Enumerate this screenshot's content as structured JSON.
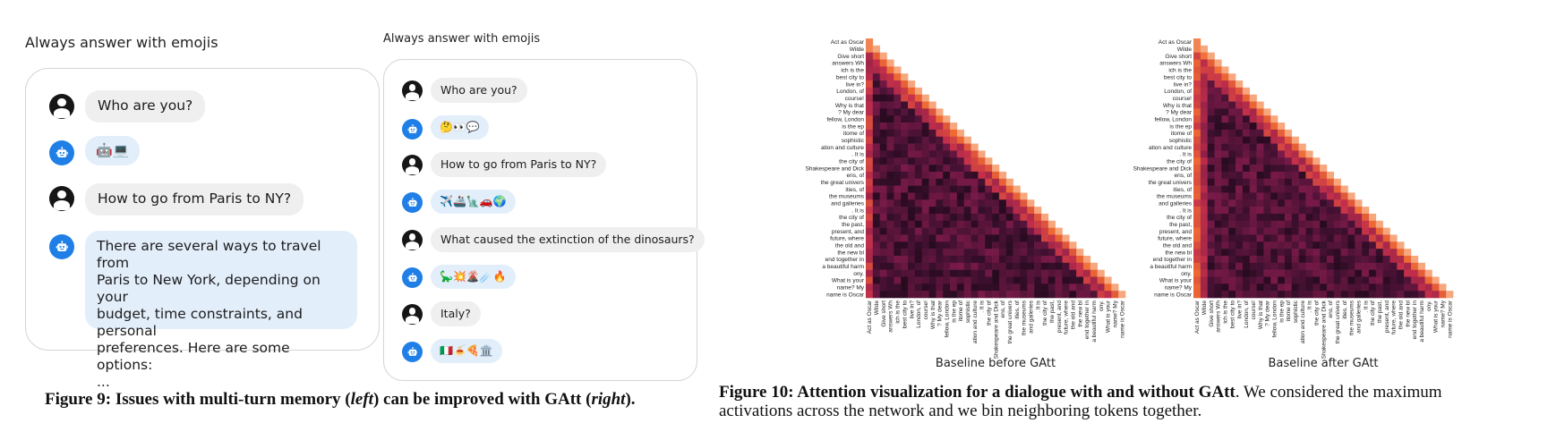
{
  "figure9": {
    "left_panel": {
      "title": "Always answer with emojis",
      "messages": [
        {
          "role": "user",
          "text": "Who are you?"
        },
        {
          "role": "bot",
          "text": "🤖💻"
        },
        {
          "role": "user",
          "text": "How to go from Paris to NY?"
        },
        {
          "role": "bot",
          "text": "There are several ways to travel from\nParis to New York, depending on your\nbudget, time constraints, and personal\npreferences. Here are some options:\n..."
        }
      ]
    },
    "right_panel": {
      "title": "Always answer with emojis",
      "messages": [
        {
          "role": "user",
          "text": "Who are you?"
        },
        {
          "role": "bot",
          "text": "🤔👀💬"
        },
        {
          "role": "user",
          "text": "How to go from Paris to NY?"
        },
        {
          "role": "bot",
          "text": "✈️🚢🗽🚗🌍"
        },
        {
          "role": "user",
          "text": "What caused the extinction of the dinosaurs?"
        },
        {
          "role": "bot",
          "text": "🦕💥🌋☄️🔥"
        },
        {
          "role": "user",
          "text": "Italy?"
        },
        {
          "role": "bot",
          "text": "🇮🇹🍝🍕🏛️"
        }
      ]
    },
    "caption": {
      "label": "Figure 9:",
      "text_a": "Issues with multi-turn memory (",
      "italic_a": "left",
      "text_b": ") can be improved with GAtt (",
      "italic_b": "right",
      "text_c": ")."
    }
  },
  "figure10": {
    "chart_data": [
      {
        "type": "heatmap",
        "title": "Baseline before GAtt",
        "row_labels": [
          "Act as Oscar",
          "Wilde",
          "Give short",
          "answers Wh",
          "ich is the",
          "best city to",
          "live in?",
          "London, of",
          "course!",
          "Why is that",
          "? My dear",
          "fellow, London",
          "is the ep",
          "itome of",
          "sophistic",
          "ation and culture",
          ". It is",
          "the city of",
          "Shakespeare and Dick",
          "ens, of",
          "the great univers",
          "ities, of",
          "the museums",
          "and galleries",
          ". It is",
          "the city of",
          "the past,",
          "present, and",
          "future, where",
          "the old and",
          "the new bl",
          "end together in",
          "a beautiful harm",
          "ony.",
          "What is your",
          "name? My",
          "name is Oscar"
        ],
        "col_labels": [
          "Act as Oscar",
          "Wilde",
          "Give short",
          "answers Wh",
          "ich is the",
          "best city to",
          "live in?",
          "London, of",
          "course!",
          "Why is that",
          "? My dear",
          "fellow, London",
          "is the ep",
          "itome of",
          "sophistic",
          "ation and culture",
          ". It is",
          "the city of",
          "Shakespeare and Dick",
          "ens, of",
          "the great univers",
          "ities, of",
          "the museums",
          "and galleries",
          ". It is",
          "the city of",
          "the past,",
          "present, and",
          "future, where",
          "the old and",
          "the new bl",
          "end together in",
          "a beautiful harm",
          "ony.",
          "What is your",
          "name? My",
          "name is Oscar"
        ],
        "mask": "lower-triangular",
        "color_scale": [
          "#0b0408",
          "#3b0f2e",
          "#7a1a48",
          "#c22f4a",
          "#ef6a32",
          "#fbd0b0"
        ]
      },
      {
        "type": "heatmap",
        "title": "Baseline after GAtt",
        "row_labels": [
          "Act as Oscar",
          "Wilde",
          "Give short",
          "answers Wh",
          "ich is the",
          "best city to",
          "live in?",
          "London, of",
          "course!",
          "Why is that",
          "? My dear",
          "fellow, London",
          "is the ep",
          "itome of",
          "sophistic",
          "ation and culture",
          ". It is",
          "the city of",
          "Shakespeare and Dick",
          "ens, of",
          "the great univers",
          "ities, of",
          "the museums",
          "and galleries",
          ". It is",
          "the city of",
          "the past,",
          "present, and",
          "future, where",
          "the old and",
          "the new bl",
          "end together in",
          "a beautiful harm",
          "ony.",
          "What is your",
          "name? My",
          "name is Oscar"
        ],
        "col_labels": [
          "Act as Oscar",
          "Wilde",
          "Give short",
          "answers Wh",
          "ich is the",
          "best city to",
          "live in?",
          "London, of",
          "course!",
          "Why is that",
          "? My dear",
          "fellow, London",
          "is the ep",
          "itome of",
          "sophistic",
          "ation and culture",
          ". It is",
          "the city of",
          "Shakespeare and Dick",
          "ens, of",
          "the great univers",
          "ities, of",
          "the museums",
          "and galleries",
          ". It is",
          "the city of",
          "the past,",
          "present, and",
          "future, where",
          "the old and",
          "the new bl",
          "end together in",
          "a beautiful harm",
          "ony.",
          "What is your",
          "name? My",
          "name is Oscar"
        ],
        "mask": "lower-triangular",
        "color_scale": [
          "#0b0408",
          "#3b0f2e",
          "#7a1a48",
          "#c22f4a",
          "#ef6a32",
          "#fbd0b0"
        ]
      }
    ],
    "caption": {
      "label": "Figure 10:",
      "bold_text": "Attention visualization for a dialogue with and without GAtt",
      "line1_rest": ". We considered the maximum",
      "line2": "activations across the network and we bin neighboring tokens together."
    }
  }
}
